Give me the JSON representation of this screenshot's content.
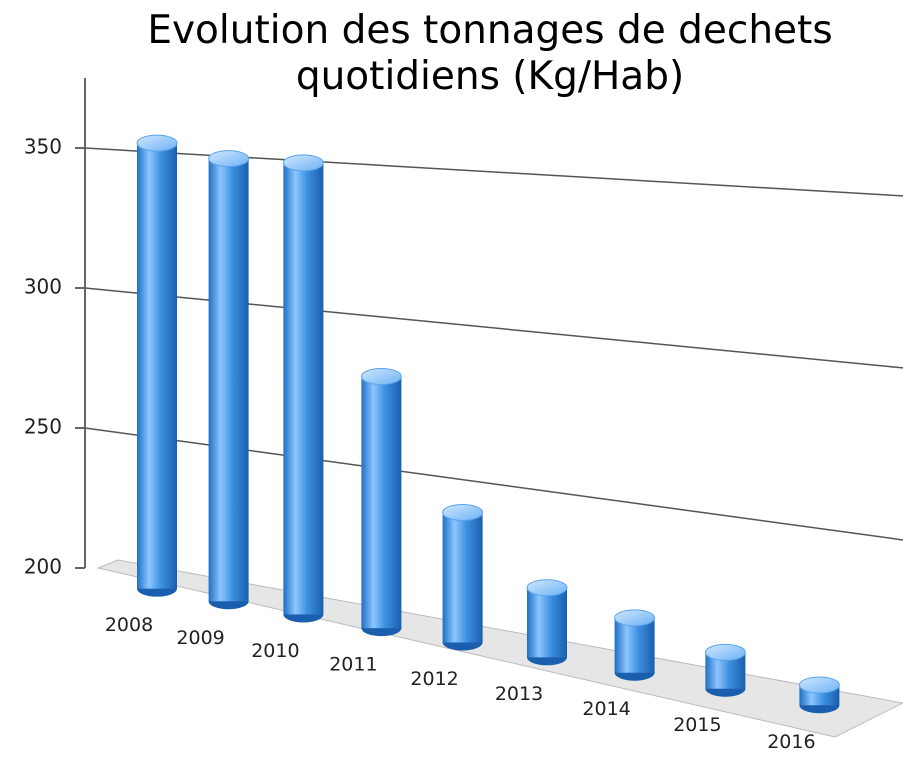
{
  "chart_data": {
    "type": "bar3d",
    "title": "Evolution des tonnages de dechets quotidiens (Kg/Hab)",
    "categories": [
      "2008",
      "2009",
      "2010",
      "2011",
      "2012",
      "2013",
      "2014",
      "2015",
      "2016"
    ],
    "values": [
      356,
      352,
      352,
      283,
      242,
      222,
      217,
      211,
      206
    ],
    "color": "#3d8fe0",
    "ylim": [
      200,
      375
    ],
    "yticks": [
      200,
      250,
      300,
      350
    ],
    "grid": true
  }
}
